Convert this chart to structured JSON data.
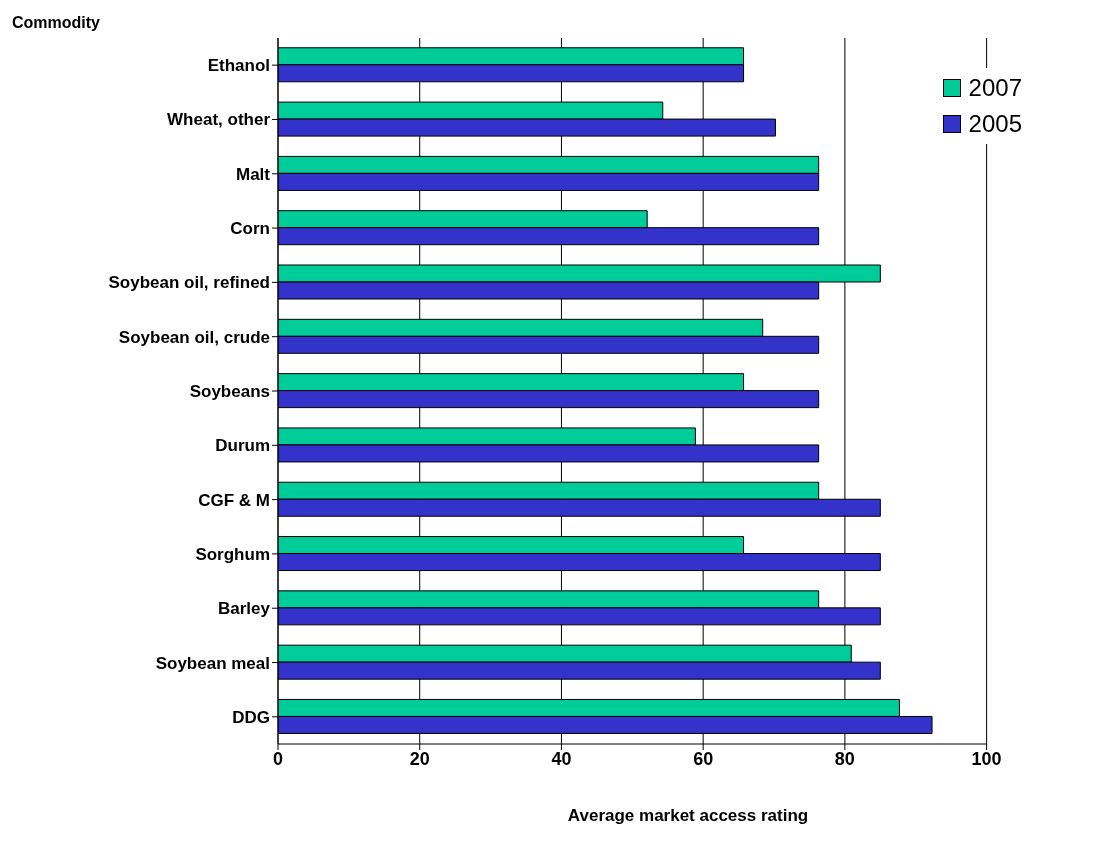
{
  "chart_data": {
    "type": "bar",
    "orientation": "horizontal",
    "xlabel": "Average market access rating",
    "ylabel": "Commodity",
    "categories": [
      "Ethanol",
      "Wheat, other",
      "Malt",
      "Corn",
      "Soybean oil, refined",
      "Soybean oil, crude",
      "Soybeans",
      "Durum",
      "CGF & M",
      "Sorghum",
      "Barley",
      "Soybean meal",
      "DDG"
    ],
    "series": [
      {
        "name": "2007",
        "color": "#00cc99",
        "values": [
          65.7,
          54.3,
          76.3,
          52.1,
          85.0,
          68.4,
          65.7,
          58.9,
          76.3,
          65.7,
          76.3,
          80.9,
          87.7
        ]
      },
      {
        "name": "2005",
        "color": "#3333cc",
        "values": [
          65.7,
          70.2,
          76.3,
          76.3,
          76.3,
          76.3,
          76.3,
          76.3,
          85.0,
          85.0,
          85.0,
          85.0,
          92.3
        ]
      }
    ],
    "xlim": [
      0,
      100
    ],
    "xticks": [
      0,
      20,
      40,
      60,
      80,
      100
    ],
    "grid": "x",
    "legend": "top right"
  }
}
